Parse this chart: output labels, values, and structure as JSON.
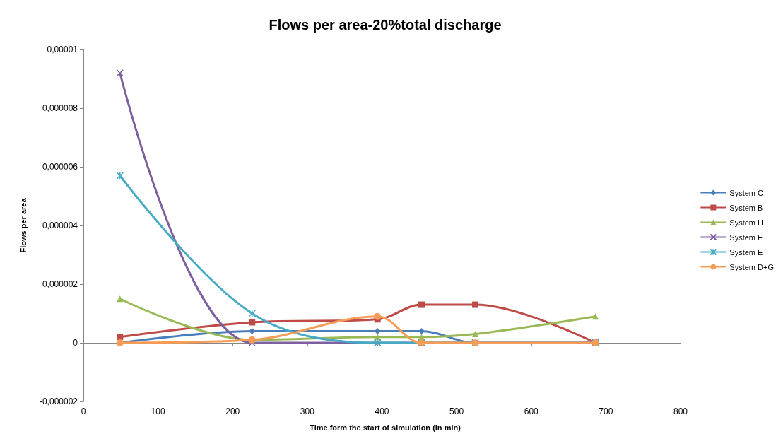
{
  "chart_data": {
    "type": "line",
    "title": "Flows per area-20%total discharge",
    "xlabel": "Time form the start of simulation (in min)",
    "ylabel": "Flows per area",
    "x": [
      49,
      226,
      394,
      453,
      525,
      686
    ],
    "xlim": [
      0,
      800
    ],
    "xticks": [
      0,
      100,
      200,
      300,
      400,
      500,
      600,
      700,
      800
    ],
    "ylim": [
      -2e-06,
      1e-05
    ],
    "yticks": [
      {
        "value": -2e-06,
        "label": "-0,000002"
      },
      {
        "value": 0,
        "label": "0"
      },
      {
        "value": 2e-06,
        "label": "0,000002"
      },
      {
        "value": 4e-06,
        "label": "0,000004"
      },
      {
        "value": 6e-06,
        "label": "0,000006"
      },
      {
        "value": 8e-06,
        "label": "0,000008"
      },
      {
        "value": 1e-05,
        "label": "0,00001"
      }
    ],
    "legend": "right",
    "line_style": "solid",
    "series": [
      {
        "name": "System C",
        "color": "#4a7ebb",
        "marker": "diamond",
        "values": [
          0,
          4e-07,
          4e-07,
          4e-07,
          0,
          0
        ]
      },
      {
        "name": "System B",
        "color": "#be4b48",
        "marker": "square",
        "values": [
          2e-07,
          7e-07,
          8e-07,
          1.3e-06,
          1.3e-06,
          0
        ]
      },
      {
        "name": "System H",
        "color": "#98b954",
        "marker": "triangle",
        "values": [
          1.5e-06,
          1e-07,
          2e-07,
          2e-07,
          3e-07,
          9e-07
        ]
      },
      {
        "name": "System F",
        "color": "#7d60a0",
        "marker": "cross",
        "values": [
          9.2e-06,
          0,
          0,
          0,
          0,
          0
        ]
      },
      {
        "name": "System E",
        "color": "#46aac5",
        "marker": "cross",
        "values": [
          5.7e-06,
          1e-06,
          0,
          0,
          0,
          0
        ]
      },
      {
        "name": "System D+G",
        "color": "#f59d56",
        "marker": "circle",
        "values": [
          0,
          1e-07,
          9e-07,
          0,
          0,
          0
        ]
      }
    ]
  }
}
